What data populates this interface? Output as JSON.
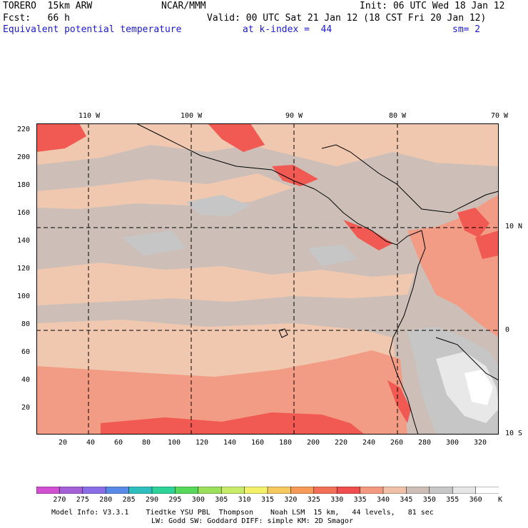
{
  "header": {
    "model": "TORERO  15km ARW",
    "center": "NCAR/MMM",
    "init": "Init: 06 UTC Wed 18 Jan 12",
    "fcst": "Fcst:   66 h",
    "valid": "Valid: 00 UTC Sat 21 Jan 12 (18 CST Fri 20 Jan 12)",
    "field": "Equivalent potential temperature",
    "level": "at k-index =  44",
    "smoothing": "sm= 2"
  },
  "map": {
    "top_lon_labels": [
      "110 W",
      "100 W",
      "90 W",
      "80 W",
      "70 W"
    ],
    "right_lat_labels": [
      "10 N",
      "0",
      "10 S"
    ],
    "y_grid_labels": [
      "220",
      "200",
      "180",
      "160",
      "140",
      "120",
      "100",
      "80",
      "60",
      "40",
      "20"
    ],
    "x_grid_labels": [
      "20",
      "40",
      "60",
      "80",
      "100",
      "120",
      "140",
      "160",
      "180",
      "200",
      "220",
      "240",
      "260",
      "280",
      "300",
      "320"
    ]
  },
  "colorbar": {
    "unit": "K",
    "levels": [
      "270",
      "275",
      "280",
      "285",
      "290",
      "295",
      "300",
      "305",
      "310",
      "315",
      "320",
      "325",
      "330",
      "335",
      "340",
      "345",
      "350",
      "355",
      "360"
    ],
    "colors": [
      "#d14fd1",
      "#a560d8",
      "#8a6ee8",
      "#5a8ae8",
      "#2fbfbf",
      "#2fd39a",
      "#56d85a",
      "#9ae05a",
      "#c8ec6a",
      "#f3f06a",
      "#f5c860",
      "#f59a58",
      "#f37058",
      "#f04e4e",
      "#f39a80",
      "#f0c0a8",
      "#cdbfb8",
      "#c8c8c8",
      "#e6e6e6",
      "#ffffff"
    ]
  },
  "footer": {
    "line1": "Model Info: V3.3.1    Tiedtke YSU PBL  Thompson    Noah LSM  15 km,   44 levels,   81 sec",
    "line2": "LW: Godd SW: Goddard DIFF: simple KM: 2D Smagor"
  }
}
